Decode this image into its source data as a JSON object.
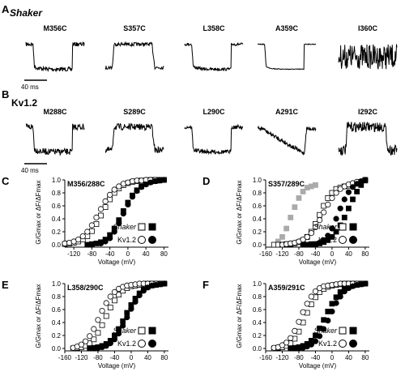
{
  "panels": {
    "A": {
      "letter": "A",
      "title": "Shaker",
      "scale": "40 ms",
      "traces": [
        {
          "label": "M356C",
          "kind": "down",
          "noise": 0.06
        },
        {
          "label": "S357C",
          "kind": "up",
          "noise": 0.05
        },
        {
          "label": "L358C",
          "kind": "down",
          "noise": 0.04
        },
        {
          "label": "A359C",
          "kind": "down",
          "noise": 0.01
        },
        {
          "label": "I360C",
          "kind": "flat",
          "noise": 0.35
        }
      ]
    },
    "B": {
      "letter": "B",
      "title": "Kv1.2",
      "scale": "40 ms",
      "traces": [
        {
          "label": "M288C",
          "kind": "down",
          "noise": 0.09
        },
        {
          "label": "S289C",
          "kind": "up",
          "noise": 0.09
        },
        {
          "label": "L290C",
          "kind": "down",
          "noise": 0.06
        },
        {
          "label": "A291C",
          "kind": "ramp",
          "noise": 0.06
        },
        {
          "label": "I292C",
          "kind": "up",
          "noise": 0.14
        }
      ]
    }
  },
  "chart_data": [
    {
      "id": "C",
      "letter": "C",
      "type": "scatter",
      "title": "M356/288C",
      "xlabel": "Voltage (mV)",
      "ylabel": "G/Gmax or ΔF/ΔFmax",
      "xticks": [
        "-120",
        "-80",
        "-40",
        "0",
        "40",
        "80"
      ],
      "yticks": [
        "0.0",
        "0.2",
        "0.4",
        "0.6",
        "0.8",
        "1.0"
      ],
      "xlim": [
        -140,
        90
      ],
      "ylim": [
        0,
        1.0
      ],
      "legend": {
        "shaker": "Shaker",
        "kv": "Kv1.2",
        "placement": "bottom-right"
      },
      "series": [
        {
          "name": "Shaker",
          "marker": "square",
          "fill": "open",
          "x": [
            -140,
            -130,
            -120,
            -110,
            -100,
            -90,
            -80,
            -70,
            -60,
            -50,
            -40,
            -30,
            -20,
            -10,
            0,
            10,
            20,
            30,
            40,
            50,
            60,
            70,
            80
          ],
          "y": [
            0.01,
            0.02,
            0.03,
            0.05,
            0.08,
            0.13,
            0.21,
            0.32,
            0.45,
            0.58,
            0.7,
            0.8,
            0.87,
            0.92,
            0.95,
            0.97,
            0.98,
            0.99,
            0.99,
            1.0,
            1.0,
            1.0,
            1.0
          ]
        },
        {
          "name": "Shaker",
          "marker": "square",
          "fill": "filled",
          "x": [
            -90,
            -80,
            -70,
            -60,
            -50,
            -40,
            -30,
            -20,
            -10,
            0,
            10,
            20,
            30,
            40,
            50,
            60,
            70,
            80
          ],
          "y": [
            0.0,
            0.01,
            0.02,
            0.04,
            0.08,
            0.15,
            0.25,
            0.38,
            0.52,
            0.65,
            0.76,
            0.84,
            0.9,
            0.94,
            0.97,
            0.98,
            0.99,
            1.0
          ]
        },
        {
          "name": "Kv1.2",
          "marker": "circle",
          "fill": "open",
          "x": [
            -140,
            -130,
            -120,
            -110,
            -100,
            -90,
            -80,
            -70,
            -60,
            -50,
            -40,
            -30,
            -20,
            -10,
            0,
            10,
            20,
            30,
            40,
            50,
            60,
            70,
            80
          ],
          "y": [
            0.02,
            0.03,
            0.05,
            0.08,
            0.13,
            0.2,
            0.3,
            0.42,
            0.55,
            0.67,
            0.77,
            0.85,
            0.9,
            0.94,
            0.96,
            0.98,
            0.99,
            0.99,
            1.0,
            1.0,
            1.0,
            1.0,
            1.0
          ]
        },
        {
          "name": "Kv1.2",
          "marker": "circle",
          "fill": "filled",
          "x": [
            -60,
            -50,
            -40,
            -30,
            -20,
            -10,
            0,
            10,
            20,
            30,
            40,
            50,
            60,
            70,
            80
          ],
          "y": [
            0.02,
            0.05,
            0.1,
            0.2,
            0.33,
            0.48,
            0.62,
            0.74,
            0.83,
            0.89,
            0.93,
            0.96,
            0.98,
            0.99,
            1.0
          ]
        }
      ]
    },
    {
      "id": "D",
      "letter": "D",
      "type": "scatter",
      "title": "S357/289C",
      "xlabel": "Voltage (mV)",
      "ylabel": "G/Gmax or ΔF/ΔFmax",
      "xticks": [
        "-160",
        "-120",
        "-80",
        "-40",
        "0",
        "40",
        "80"
      ],
      "yticks": [
        "0.0",
        "0.2",
        "0.4",
        "0.6",
        "0.8",
        "1.0"
      ],
      "xlim": [
        -160,
        90
      ],
      "ylim": [
        0,
        1.0
      ],
      "legend": {
        "shaker": "Shaker",
        "kv": "Kv1.2",
        "placement": "bottom-right"
      },
      "series": [
        {
          "name": "",
          "marker": "square",
          "fill": "gray",
          "x": [
            -130,
            -120,
            -110,
            -100,
            -90,
            -80,
            -70,
            -60,
            -50,
            -40
          ],
          "y": [
            0.05,
            0.12,
            0.25,
            0.42,
            0.58,
            0.72,
            0.82,
            0.88,
            0.9,
            0.92
          ]
        },
        {
          "name": "Shaker",
          "marker": "square",
          "fill": "open",
          "x": [
            -140,
            -130,
            -120,
            -110,
            -100,
            -90,
            -80,
            -70,
            -60,
            -50,
            -40,
            -30,
            -20,
            -10,
            0,
            10,
            20,
            30,
            40,
            50,
            60,
            70,
            80
          ],
          "y": [
            0.0,
            0.0,
            0.0,
            0.01,
            0.01,
            0.02,
            0.04,
            0.07,
            0.12,
            0.2,
            0.32,
            0.46,
            0.6,
            0.72,
            0.8,
            0.86,
            0.88,
            0.9,
            0.91,
            0.93,
            0.95,
            0.97,
            0.99
          ]
        },
        {
          "name": "Shaker",
          "marker": "square",
          "fill": "filled",
          "x": [
            -70,
            -60,
            -50,
            -40,
            -30,
            -20,
            -10,
            0,
            10,
            20,
            30,
            40,
            50,
            60,
            70,
            80
          ],
          "y": [
            0.0,
            0.0,
            0.01,
            0.01,
            0.02,
            0.04,
            0.07,
            0.12,
            0.2,
            0.3,
            0.42,
            0.56,
            0.7,
            0.82,
            0.92,
            1.0
          ]
        },
        {
          "name": "Kv1.2",
          "marker": "circle",
          "fill": "open",
          "x": [
            -120,
            -110,
            -100,
            -90,
            -80,
            -70,
            -60,
            -50,
            -40,
            -30,
            -20,
            -10,
            0,
            10,
            20,
            30,
            40,
            50,
            60,
            70,
            80
          ],
          "y": [
            0.0,
            0.01,
            0.02,
            0.03,
            0.05,
            0.08,
            0.12,
            0.18,
            0.27,
            0.38,
            0.5,
            0.62,
            0.72,
            0.8,
            0.86,
            0.9,
            0.93,
            0.95,
            0.97,
            0.98,
            1.0
          ]
        },
        {
          "name": "Kv1.2",
          "marker": "circle",
          "fill": "filled",
          "x": [
            -40,
            -30,
            -20,
            -10,
            0,
            10,
            20,
            30,
            40,
            50,
            60,
            70,
            80
          ],
          "y": [
            0.01,
            0.03,
            0.07,
            0.14,
            0.25,
            0.4,
            0.56,
            0.7,
            0.81,
            0.89,
            0.94,
            0.97,
            1.0
          ]
        }
      ]
    },
    {
      "id": "E",
      "letter": "E",
      "type": "scatter",
      "title": "L358/290C",
      "xlabel": "Voltage (mV)",
      "ylabel": "G/Gmax or ΔF/ΔFmax",
      "xticks": [
        "-160",
        "-120",
        "-80",
        "-40",
        "0",
        "40",
        "80"
      ],
      "yticks": [
        "0.0",
        "0.2",
        "0.4",
        "0.6",
        "0.8",
        "1.0"
      ],
      "xlim": [
        -160,
        90
      ],
      "ylim": [
        0,
        1.0
      ],
      "legend": {
        "shaker": "Shaker",
        "kv": "Kv1.2",
        "placement": "bottom-right"
      },
      "series": [
        {
          "name": "Shaker",
          "marker": "square",
          "fill": "open",
          "x": [
            -140,
            -130,
            -120,
            -110,
            -100,
            -90,
            -80,
            -70,
            -60,
            -50,
            -40,
            -30,
            -20,
            -10,
            0,
            10,
            20,
            30,
            40,
            50,
            60,
            70,
            80
          ],
          "y": [
            0.0,
            0.01,
            0.02,
            0.04,
            0.08,
            0.14,
            0.24,
            0.36,
            0.5,
            0.63,
            0.74,
            0.83,
            0.89,
            0.93,
            0.96,
            0.97,
            0.98,
            0.99,
            1.0,
            1.0,
            1.0,
            1.0,
            1.0
          ]
        },
        {
          "name": "Shaker",
          "marker": "square",
          "fill": "filled",
          "x": [
            -100,
            -90,
            -80,
            -70,
            -60,
            -50,
            -40,
            -30,
            -20,
            -10,
            0,
            10,
            20,
            30,
            40,
            50,
            60,
            70,
            80
          ],
          "y": [
            0.0,
            0.01,
            0.02,
            0.04,
            0.07,
            0.12,
            0.2,
            0.3,
            0.42,
            0.55,
            0.67,
            0.77,
            0.85,
            0.91,
            0.95,
            0.97,
            0.98,
            0.99,
            1.0
          ]
        },
        {
          "name": "Kv1.2",
          "marker": "circle",
          "fill": "open",
          "x": [
            -140,
            -130,
            -120,
            -110,
            -100,
            -90,
            -80,
            -70,
            -60,
            -50,
            -40,
            -30,
            -20,
            -10,
            0,
            10,
            20,
            30,
            40,
            50,
            60,
            70,
            80
          ],
          "y": [
            0.01,
            0.03,
            0.06,
            0.11,
            0.19,
            0.3,
            0.44,
            0.58,
            0.7,
            0.8,
            0.87,
            0.92,
            0.95,
            0.97,
            0.98,
            0.99,
            1.0,
            1.0,
            1.0,
            1.0,
            1.0,
            1.0,
            1.0
          ]
        },
        {
          "name": "Kv1.2",
          "marker": "circle",
          "fill": "filled",
          "x": [
            -90,
            -80,
            -70,
            -60,
            -50,
            -40,
            -30,
            -20,
            -10,
            0,
            10,
            20,
            30,
            40,
            50,
            60,
            70,
            80
          ],
          "y": [
            0.0,
            0.01,
            0.02,
            0.04,
            0.08,
            0.14,
            0.23,
            0.35,
            0.48,
            0.61,
            0.72,
            0.82,
            0.89,
            0.94,
            0.97,
            0.98,
            0.99,
            1.0
          ]
        }
      ]
    },
    {
      "id": "F",
      "letter": "F",
      "type": "scatter",
      "title": "A359/291C",
      "xlabel": "Voltage (mV)",
      "ylabel": "G/Gmax or ΔF/ΔFmax",
      "xticks": [
        "-160",
        "-120",
        "-80",
        "-40",
        "0",
        "40",
        "80"
      ],
      "yticks": [
        "0.0",
        "0.2",
        "0.4",
        "0.6",
        "0.8",
        "1.0"
      ],
      "xlim": [
        -160,
        90
      ],
      "ylim": [
        0,
        1.0
      ],
      "legend": {
        "shaker": "Shaker",
        "kv": "Kv1.2",
        "placement": "bottom-right"
      },
      "series": [
        {
          "name": "Shaker",
          "marker": "square",
          "fill": "open",
          "x": [
            -140,
            -130,
            -120,
            -110,
            -100,
            -90,
            -80,
            -70,
            -60,
            -50,
            -40,
            -30,
            -20,
            -10,
            0,
            10,
            20,
            30,
            40,
            50,
            60,
            70,
            80
          ],
          "y": [
            0.0,
            0.01,
            0.02,
            0.04,
            0.08,
            0.15,
            0.26,
            0.4,
            0.55,
            0.68,
            0.79,
            0.87,
            0.92,
            0.95,
            0.97,
            0.98,
            0.99,
            1.0,
            1.0,
            1.0,
            1.0,
            1.0,
            1.0
          ]
        },
        {
          "name": "Shaker",
          "marker": "square",
          "fill": "filled",
          "x": [
            -100,
            -90,
            -80,
            -70,
            -60,
            -50,
            -40,
            -30,
            -20,
            -10,
            0,
            10,
            20,
            30,
            40,
            50,
            60,
            70,
            80
          ],
          "y": [
            0.0,
            0.01,
            0.02,
            0.04,
            0.07,
            0.12,
            0.2,
            0.31,
            0.44,
            0.57,
            0.69,
            0.79,
            0.87,
            0.92,
            0.95,
            0.97,
            0.98,
            0.99,
            1.0
          ]
        },
        {
          "name": "Kv1.2",
          "marker": "circle",
          "fill": "open",
          "x": [
            -140,
            -130,
            -120,
            -110,
            -100,
            -90,
            -80,
            -70,
            -60,
            -50,
            -40,
            -30,
            -20,
            -10,
            0,
            10,
            20,
            30,
            40,
            50,
            60,
            70,
            80
          ],
          "y": [
            0.01,
            0.02,
            0.05,
            0.09,
            0.16,
            0.27,
            0.41,
            0.56,
            0.69,
            0.8,
            0.88,
            0.93,
            0.96,
            0.97,
            0.98,
            0.99,
            1.0,
            1.0,
            1.0,
            1.0,
            1.0,
            1.0,
            1.0
          ]
        },
        {
          "name": "Kv1.2",
          "marker": "circle",
          "fill": "filled",
          "x": [
            -80,
            -70,
            -60,
            -50,
            -40,
            -30,
            -20,
            -10,
            0,
            10,
            20,
            30,
            40,
            50,
            60,
            70,
            80
          ],
          "y": [
            0.0,
            0.01,
            0.03,
            0.06,
            0.11,
            0.19,
            0.3,
            0.43,
            0.57,
            0.7,
            0.8,
            0.88,
            0.93,
            0.96,
            0.98,
            0.99,
            1.0
          ]
        }
      ]
    }
  ]
}
